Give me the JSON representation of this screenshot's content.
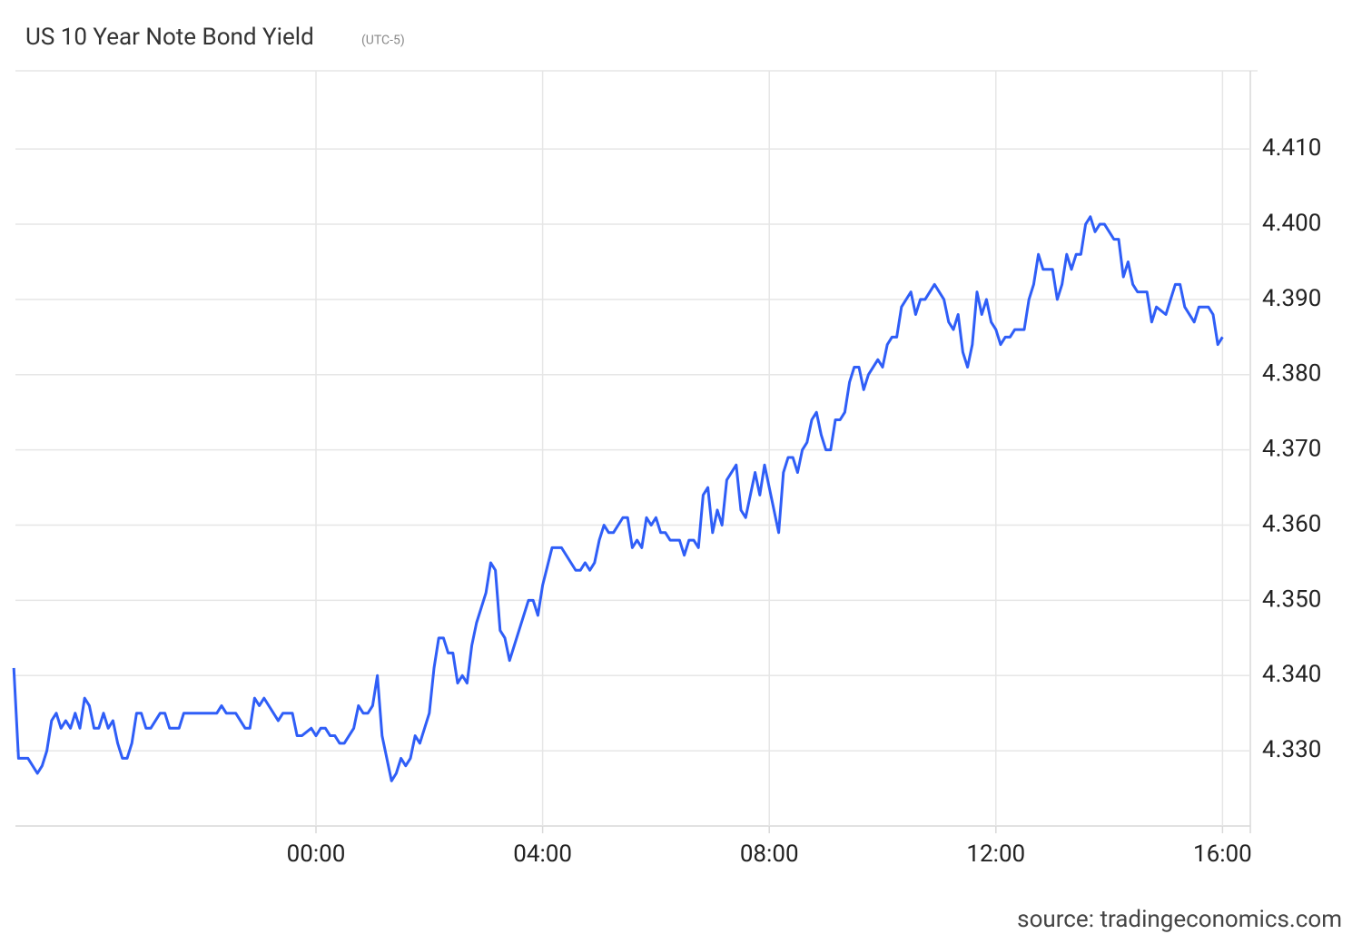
{
  "chart_data": {
    "type": "line",
    "title": "US 10 Year Note Bond Yield",
    "subtitle": "(UTC-5)",
    "source": "source: tradingeconomics.com",
    "color": "#2f5ef7",
    "grid": true,
    "xlim": [
      -320,
      990
    ],
    "xticks": [
      {
        "value": 0,
        "label": "00:00"
      },
      {
        "value": 240,
        "label": "04:00"
      },
      {
        "value": 480,
        "label": "08:00"
      },
      {
        "value": 720,
        "label": "12:00"
      },
      {
        "value": 960,
        "label": "16:00"
      }
    ],
    "ylim": [
      4.32,
      4.4204
    ],
    "yticks": [
      {
        "value": 4.33,
        "label": "4.330"
      },
      {
        "value": 4.34,
        "label": "4.340"
      },
      {
        "value": 4.35,
        "label": "4.350"
      },
      {
        "value": 4.36,
        "label": "4.360"
      },
      {
        "value": 4.37,
        "label": "4.370"
      },
      {
        "value": 4.38,
        "label": "4.380"
      },
      {
        "value": 4.39,
        "label": "4.390"
      },
      {
        "value": 4.4,
        "label": "4.400"
      },
      {
        "value": 4.41,
        "label": "4.410"
      }
    ],
    "x": [
      -320,
      -315,
      -305,
      -295,
      -290,
      -285,
      -280,
      -275,
      -270,
      -265,
      -260,
      -255,
      -250,
      -245,
      -240,
      -235,
      -230,
      -225,
      -220,
      -215,
      -210,
      -205,
      -200,
      -195,
      -190,
      -185,
      -180,
      -175,
      -165,
      -160,
      -155,
      -145,
      -140,
      -105,
      -100,
      -95,
      -85,
      -75,
      -70,
      -65,
      -60,
      -55,
      -40,
      -35,
      -25,
      -20,
      -15,
      -5,
      0,
      5,
      10,
      15,
      20,
      25,
      30,
      40,
      45,
      50,
      55,
      60,
      65,
      70,
      80,
      85,
      90,
      95,
      100,
      105,
      110,
      120,
      125,
      130,
      135,
      140,
      145,
      150,
      155,
      160,
      165,
      170,
      180,
      185,
      190,
      195,
      200,
      205,
      225,
      230,
      235,
      240,
      250,
      260,
      275,
      280,
      285,
      290,
      295,
      300,
      305,
      310,
      315,
      325,
      330,
      335,
      340,
      345,
      350,
      355,
      360,
      365,
      370,
      375,
      385,
      390,
      395,
      400,
      405,
      410,
      415,
      420,
      425,
      430,
      435,
      445,
      450,
      455,
      465,
      470,
      475,
      480,
      490,
      495,
      500,
      505,
      510,
      515,
      520,
      525,
      530,
      535,
      540,
      545,
      550,
      555,
      560,
      565,
      570,
      575,
      580,
      585,
      595,
      600,
      605,
      610,
      615,
      620,
      630,
      635,
      640,
      645,
      655,
      665,
      670,
      675,
      680,
      685,
      690,
      695,
      700,
      705,
      710,
      715,
      720,
      725,
      730,
      735,
      740,
      750,
      755,
      760,
      765,
      770,
      780,
      785,
      790,
      795,
      800,
      805,
      810,
      815,
      820,
      825,
      830,
      835,
      845,
      850,
      855,
      860,
      865,
      870,
      880,
      885,
      890,
      900,
      910,
      915,
      920,
      930,
      935,
      945,
      950,
      955,
      960
    ],
    "values": [
      4.341,
      4.329,
      4.329,
      4.327,
      4.328,
      4.33,
      4.334,
      4.335,
      4.333,
      4.334,
      4.333,
      4.335,
      4.333,
      4.337,
      4.336,
      4.333,
      4.333,
      4.335,
      4.333,
      4.334,
      4.331,
      4.329,
      4.329,
      4.331,
      4.335,
      4.335,
      4.333,
      4.333,
      4.335,
      4.335,
      4.333,
      4.333,
      4.335,
      4.335,
      4.336,
      4.335,
      4.335,
      4.333,
      4.333,
      4.337,
      4.336,
      4.337,
      4.334,
      4.335,
      4.335,
      4.332,
      4.332,
      4.333,
      4.332,
      4.333,
      4.333,
      4.332,
      4.332,
      4.331,
      4.331,
      4.333,
      4.336,
      4.335,
      4.335,
      4.336,
      4.34,
      4.332,
      4.326,
      4.327,
      4.329,
      4.328,
      4.329,
      4.332,
      4.331,
      4.335,
      4.341,
      4.345,
      4.345,
      4.343,
      4.343,
      4.339,
      4.34,
      4.339,
      4.344,
      4.347,
      4.351,
      4.355,
      4.354,
      4.346,
      4.345,
      4.342,
      4.35,
      4.35,
      4.348,
      4.352,
      4.357,
      4.357,
      4.354,
      4.354,
      4.355,
      4.354,
      4.355,
      4.358,
      4.36,
      4.359,
      4.359,
      4.361,
      4.361,
      4.357,
      4.358,
      4.357,
      4.361,
      4.36,
      4.361,
      4.359,
      4.359,
      4.358,
      4.358,
      4.356,
      4.358,
      4.358,
      4.357,
      4.364,
      4.365,
      4.359,
      4.362,
      4.36,
      4.366,
      4.368,
      4.362,
      4.361,
      4.367,
      4.364,
      4.368,
      4.365,
      4.359,
      4.367,
      4.369,
      4.369,
      4.367,
      4.37,
      4.371,
      4.374,
      4.375,
      4.372,
      4.37,
      4.37,
      4.374,
      4.374,
      4.375,
      4.379,
      4.381,
      4.381,
      4.378,
      4.38,
      4.382,
      4.381,
      4.384,
      4.385,
      4.385,
      4.389,
      4.391,
      4.388,
      4.39,
      4.39,
      4.392,
      4.39,
      4.387,
      4.386,
      4.388,
      4.383,
      4.381,
      4.384,
      4.391,
      4.388,
      4.39,
      4.387,
      4.386,
      4.384,
      4.385,
      4.385,
      4.386,
      4.386,
      4.39,
      4.392,
      4.396,
      4.394,
      4.394,
      4.39,
      4.392,
      4.396,
      4.394,
      4.396,
      4.396,
      4.4,
      4.401,
      4.399,
      4.4,
      4.4,
      4.398,
      4.398,
      4.393,
      4.395,
      4.392,
      4.391,
      4.391,
      4.387,
      4.389,
      4.388,
      4.392,
      4.392,
      4.389,
      4.387,
      4.389,
      4.389,
      4.388,
      4.384,
      4.385
    ]
  }
}
